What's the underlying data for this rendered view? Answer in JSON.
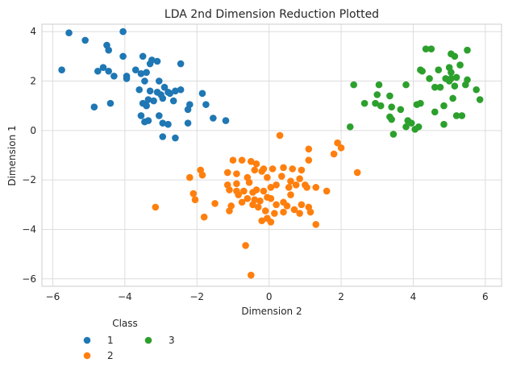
{
  "chart_data": {
    "type": "scatter",
    "title": "LDA 2nd Dimension Reduction Plotted",
    "xlabel": "Dimension 2",
    "ylabel": "Dimension 1",
    "xlim": [
      -6.3,
      6.45
    ],
    "ylim": [
      -6.3,
      4.3
    ],
    "xticks": [
      -6,
      -4,
      -2,
      0,
      2,
      4,
      6
    ],
    "xtick_labels": [
      "−6",
      "−4",
      "−2",
      "0",
      "2",
      "4",
      "6"
    ],
    "yticks": [
      -6,
      -4,
      -2,
      0,
      2,
      4
    ],
    "ytick_labels": [
      "−6",
      "−4",
      "−2",
      "0",
      "2",
      "4"
    ],
    "grid": true,
    "legend": {
      "title": "Class",
      "placement": "below-left",
      "ncol": 2
    },
    "series": [
      {
        "name": "1",
        "color": "#1f77b4",
        "points": [
          [
            -5.55,
            3.95
          ],
          [
            -5.1,
            3.65
          ],
          [
            -4.05,
            4.0
          ],
          [
            -5.75,
            2.45
          ],
          [
            -4.75,
            2.4
          ],
          [
            -4.6,
            2.55
          ],
          [
            -4.5,
            3.45
          ],
          [
            -4.45,
            3.25
          ],
          [
            -4.45,
            2.4
          ],
          [
            -4.3,
            2.2
          ],
          [
            -4.05,
            3.0
          ],
          [
            -3.95,
            2.2
          ],
          [
            -3.95,
            2.1
          ],
          [
            -3.7,
            2.45
          ],
          [
            -3.55,
            2.3
          ],
          [
            -3.5,
            3.0
          ],
          [
            -3.45,
            2.0
          ],
          [
            -3.4,
            2.35
          ],
          [
            -3.3,
            2.7
          ],
          [
            -3.25,
            2.85
          ],
          [
            -3.1,
            2.8
          ],
          [
            -3.3,
            1.6
          ],
          [
            -3.1,
            1.55
          ],
          [
            -3.0,
            1.45
          ],
          [
            -2.9,
            1.75
          ],
          [
            -2.8,
            1.55
          ],
          [
            -2.6,
            1.6
          ],
          [
            -3.05,
            2.0
          ],
          [
            -2.45,
            2.7
          ],
          [
            -2.45,
            1.65
          ],
          [
            -3.6,
            1.65
          ],
          [
            -3.5,
            1.1
          ],
          [
            -3.35,
            1.25
          ],
          [
            -3.4,
            1.0
          ],
          [
            -3.55,
            0.6
          ],
          [
            -3.45,
            0.35
          ],
          [
            -3.35,
            0.4
          ],
          [
            -3.05,
            0.6
          ],
          [
            -2.95,
            0.3
          ],
          [
            -2.8,
            0.25
          ],
          [
            -2.95,
            -0.25
          ],
          [
            -2.6,
            -0.3
          ],
          [
            -2.75,
            1.5
          ],
          [
            -2.65,
            1.2
          ],
          [
            -2.2,
            1.05
          ],
          [
            -2.25,
            0.85
          ],
          [
            -1.85,
            1.5
          ],
          [
            -1.75,
            1.05
          ],
          [
            -1.55,
            0.5
          ],
          [
            -1.2,
            0.4
          ],
          [
            -2.25,
            0.3
          ],
          [
            -2.95,
            1.3
          ],
          [
            -3.2,
            1.2
          ],
          [
            -4.85,
            0.95
          ],
          [
            -4.4,
            1.1
          ]
        ]
      },
      {
        "name": "2",
        "color": "#ff7f0e",
        "points": [
          [
            0.3,
            -0.2
          ],
          [
            1.9,
            -0.5
          ],
          [
            2.0,
            -0.7
          ],
          [
            1.8,
            -0.95
          ],
          [
            1.1,
            -0.75
          ],
          [
            -1.0,
            -1.2
          ],
          [
            -0.75,
            -1.2
          ],
          [
            -0.5,
            -1.25
          ],
          [
            -0.35,
            -1.35
          ],
          [
            -0.4,
            -1.6
          ],
          [
            -0.2,
            -1.65
          ],
          [
            -0.15,
            -1.55
          ],
          [
            0.1,
            -1.55
          ],
          [
            0.4,
            -1.5
          ],
          [
            1.1,
            -1.2
          ],
          [
            -1.15,
            -1.7
          ],
          [
            -0.9,
            -1.75
          ],
          [
            -0.6,
            -1.9
          ],
          [
            -1.9,
            -1.6
          ],
          [
            -1.85,
            -1.8
          ],
          [
            -2.2,
            -1.9
          ],
          [
            -0.05,
            -1.9
          ],
          [
            0.35,
            -1.85
          ],
          [
            0.6,
            -2.05
          ],
          [
            0.85,
            -1.95
          ],
          [
            1.0,
            -2.2
          ],
          [
            0.65,
            -1.55
          ],
          [
            0.9,
            -1.6
          ],
          [
            -1.15,
            -2.2
          ],
          [
            -0.9,
            -2.15
          ],
          [
            -0.55,
            -2.1
          ],
          [
            -1.1,
            -2.4
          ],
          [
            -0.9,
            -2.45
          ],
          [
            -0.7,
            -2.45
          ],
          [
            -0.45,
            -2.5
          ],
          [
            -0.35,
            -2.4
          ],
          [
            -0.15,
            -2.45
          ],
          [
            0.05,
            -2.3
          ],
          [
            0.2,
            -2.2
          ],
          [
            0.55,
            -2.3
          ],
          [
            0.75,
            -2.2
          ],
          [
            1.05,
            -2.3
          ],
          [
            1.3,
            -2.3
          ],
          [
            1.6,
            -2.45
          ],
          [
            -2.1,
            -2.55
          ],
          [
            -2.05,
            -2.8
          ],
          [
            -0.6,
            -2.75
          ],
          [
            -0.4,
            -2.8
          ],
          [
            -0.25,
            -2.85
          ],
          [
            -0.05,
            -2.7
          ],
          [
            0.05,
            -2.75
          ],
          [
            0.2,
            -3.0
          ],
          [
            0.4,
            -2.9
          ],
          [
            0.5,
            -3.05
          ],
          [
            0.7,
            -3.2
          ],
          [
            0.9,
            -3.0
          ],
          [
            1.1,
            -3.1
          ],
          [
            -0.75,
            -2.9
          ],
          [
            -0.45,
            -3.0
          ],
          [
            -0.3,
            -3.1
          ],
          [
            -0.1,
            -3.25
          ],
          [
            0.15,
            -3.35
          ],
          [
            0.4,
            -3.3
          ],
          [
            0.85,
            -3.35
          ],
          [
            1.15,
            -3.3
          ],
          [
            -1.05,
            -3.05
          ],
          [
            -1.1,
            -3.25
          ],
          [
            -1.8,
            -3.5
          ],
          [
            -3.15,
            -3.1
          ],
          [
            -0.05,
            -3.55
          ],
          [
            -0.2,
            -3.65
          ],
          [
            0.05,
            -3.7
          ],
          [
            1.3,
            -3.8
          ],
          [
            -0.65,
            -4.65
          ],
          [
            -0.5,
            -5.85
          ],
          [
            2.45,
            -1.7
          ],
          [
            -0.85,
            -2.6
          ],
          [
            0.6,
            -2.6
          ],
          [
            -1.5,
            -2.95
          ]
        ]
      },
      {
        "name": "3",
        "color": "#2ca02c",
        "points": [
          [
            4.35,
            3.3
          ],
          [
            4.5,
            3.3
          ],
          [
            5.05,
            3.1
          ],
          [
            5.15,
            3.0
          ],
          [
            5.5,
            3.25
          ],
          [
            4.2,
            2.45
          ],
          [
            4.25,
            2.4
          ],
          [
            4.7,
            2.45
          ],
          [
            5.0,
            2.55
          ],
          [
            5.05,
            2.35
          ],
          [
            5.3,
            2.65
          ],
          [
            4.45,
            2.1
          ],
          [
            4.9,
            2.1
          ],
          [
            5.0,
            2.0
          ],
          [
            5.2,
            2.15
          ],
          [
            5.05,
            2.1
          ],
          [
            5.5,
            2.05
          ],
          [
            3.05,
            1.85
          ],
          [
            3.8,
            1.85
          ],
          [
            4.6,
            1.75
          ],
          [
            4.75,
            1.75
          ],
          [
            5.15,
            1.8
          ],
          [
            5.45,
            1.85
          ],
          [
            5.75,
            1.65
          ],
          [
            2.35,
            1.85
          ],
          [
            3.0,
            1.45
          ],
          [
            3.35,
            1.4
          ],
          [
            2.65,
            1.1
          ],
          [
            2.95,
            1.1
          ],
          [
            3.1,
            1.0
          ],
          [
            3.4,
            0.95
          ],
          [
            3.65,
            0.85
          ],
          [
            4.1,
            1.05
          ],
          [
            4.2,
            1.1
          ],
          [
            4.85,
            1.0
          ],
          [
            5.1,
            1.3
          ],
          [
            5.85,
            1.25
          ],
          [
            3.35,
            0.55
          ],
          [
            3.4,
            0.45
          ],
          [
            3.85,
            0.4
          ],
          [
            3.95,
            0.3
          ],
          [
            4.15,
            0.15
          ],
          [
            4.05,
            0.05
          ],
          [
            4.85,
            0.25
          ],
          [
            5.2,
            0.6
          ],
          [
            5.35,
            0.6
          ],
          [
            2.25,
            0.15
          ],
          [
            3.45,
            -0.15
          ],
          [
            3.8,
            0.15
          ],
          [
            4.6,
            0.75
          ]
        ]
      }
    ]
  }
}
